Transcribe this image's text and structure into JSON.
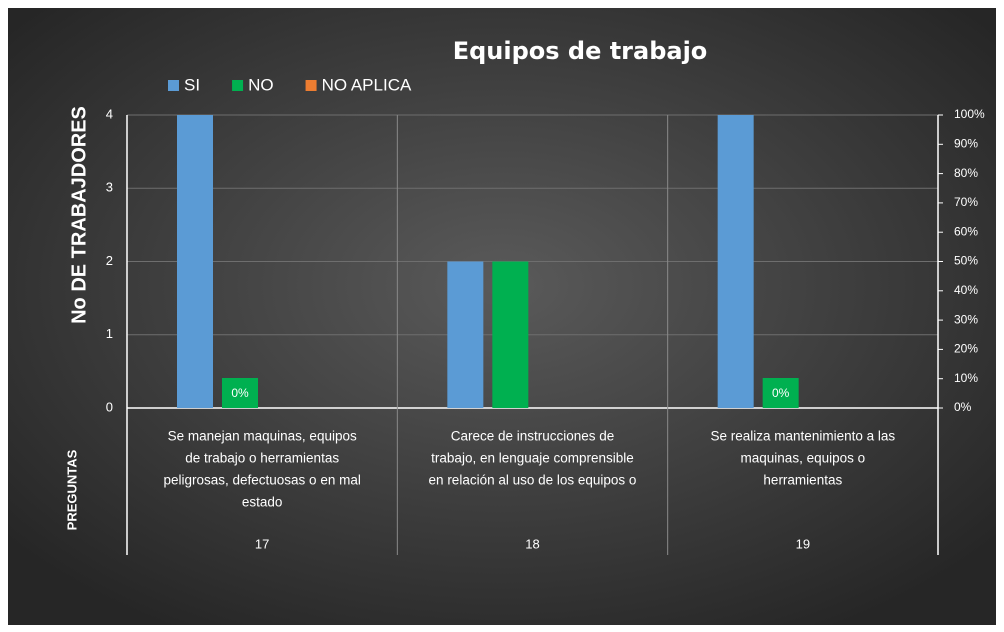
{
  "chart_data": {
    "type": "bar",
    "title": "Equipos de trabajo",
    "y_axis_label": "No DE TRABAJDORES",
    "x_axis_label": "PREGUNTAS",
    "categories": [
      "17",
      "18",
      "19"
    ],
    "questions": [
      [
        "Se manejan maquinas, equipos",
        "de trabajo o herramientas",
        "peligrosas, defectuosas o en mal",
        "estado"
      ],
      [
        "Carece de instrucciones de",
        "trabajo, en lenguaje comprensible",
        "en relación al uso de los equipos o"
      ],
      [
        "Se realiza  mantenimiento a las",
        "maquinas,   equipos o",
        "herramientas"
      ]
    ],
    "series": [
      {
        "name": "SI",
        "color": "#5b9bd5",
        "values": [
          4,
          2,
          4
        ]
      },
      {
        "name": "NO",
        "color": "#00b050",
        "values": [
          0,
          2,
          0
        ],
        "value_labels": [
          "0%",
          null,
          "0%"
        ]
      },
      {
        "name": "NO APLICA",
        "color": "#ed7d31",
        "values": [
          0,
          0,
          0
        ]
      }
    ],
    "ylim": [
      0,
      4
    ],
    "yticks": [
      0,
      1,
      2,
      3,
      4
    ],
    "y2lim": [
      0,
      100
    ],
    "y2ticks": [
      {
        "value": 0,
        "label": "0%"
      },
      {
        "value": 10,
        "label": "10%"
      },
      {
        "value": 20,
        "label": "20%"
      },
      {
        "value": 30,
        "label": "30%"
      },
      {
        "value": 40,
        "label": "40%"
      },
      {
        "value": 50,
        "label": "50%"
      },
      {
        "value": 60,
        "label": "60%"
      },
      {
        "value": 70,
        "label": "70%"
      },
      {
        "value": 80,
        "label": "80%"
      },
      {
        "value": 90,
        "label": "90%"
      },
      {
        "value": 100,
        "label": "100%"
      }
    ],
    "grid": true,
    "legend": "top"
  }
}
